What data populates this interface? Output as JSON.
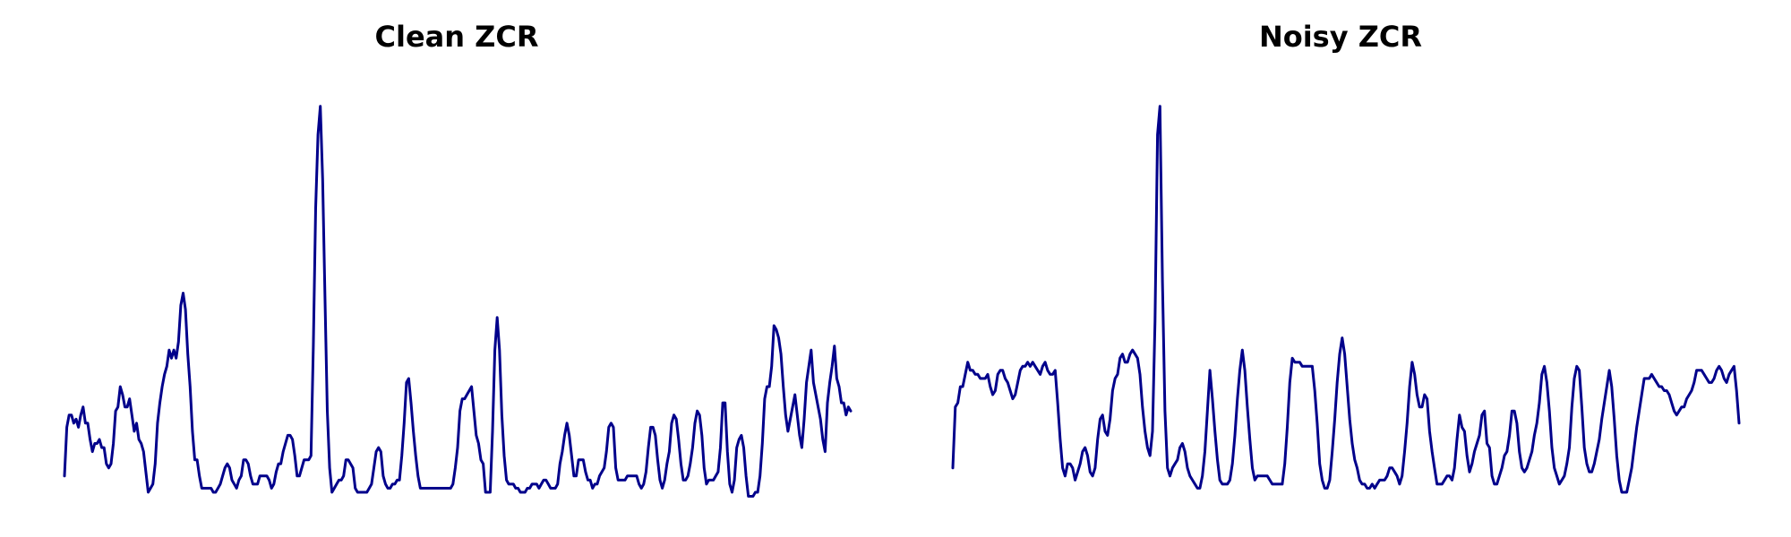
{
  "chart_data": [
    {
      "type": "line",
      "title": "Clean ZCR",
      "xlabel": "",
      "ylabel": "",
      "grid": false,
      "axes_visible": false,
      "ylim": [
        0,
        1
      ],
      "series": [
        {
          "color": "#00008b",
          "values": [
            0.04,
            0.16,
            0.19,
            0.19,
            0.17,
            0.18,
            0.16,
            0.19,
            0.21,
            0.17,
            0.17,
            0.13,
            0.1,
            0.12,
            0.12,
            0.13,
            0.11,
            0.11,
            0.07,
            0.06,
            0.07,
            0.12,
            0.2,
            0.21,
            0.26,
            0.24,
            0.21,
            0.21,
            0.23,
            0.19,
            0.15,
            0.17,
            0.13,
            0.12,
            0.1,
            0.05,
            -0.0,
            0.01,
            0.02,
            0.07,
            0.17,
            0.22,
            0.26,
            0.29,
            0.31,
            0.35,
            0.33,
            0.35,
            0.33,
            0.37,
            0.46,
            0.49,
            0.45,
            0.34,
            0.26,
            0.15,
            0.08,
            0.08,
            0.04,
            0.01,
            0.01,
            0.01,
            0.01,
            0.01,
            0.0,
            0.0,
            0.01,
            0.02,
            0.04,
            0.06,
            0.07,
            0.06,
            0.03,
            0.02,
            0.01,
            0.03,
            0.04,
            0.08,
            0.08,
            0.07,
            0.04,
            0.02,
            0.02,
            0.02,
            0.04,
            0.04,
            0.04,
            0.04,
            0.03,
            0.01,
            0.02,
            0.05,
            0.07,
            0.07,
            0.1,
            0.12,
            0.14,
            0.14,
            0.13,
            0.09,
            0.04,
            0.04,
            0.06,
            0.08,
            0.08,
            0.08,
            0.09,
            0.36,
            0.7,
            0.88,
            0.95,
            0.77,
            0.48,
            0.2,
            0.06,
            -0.0,
            0.01,
            0.02,
            0.03,
            0.03,
            0.04,
            0.08,
            0.08,
            0.07,
            0.06,
            0.01,
            -0.0,
            -0.0,
            -0.0,
            0.0,
            0.0,
            0.01,
            0.02,
            0.06,
            0.1,
            0.11,
            0.1,
            0.04,
            0.02,
            0.01,
            0.01,
            0.02,
            0.02,
            0.03,
            0.03,
            0.09,
            0.17,
            0.27,
            0.28,
            0.22,
            0.15,
            0.09,
            0.04,
            0.01,
            0.01,
            0.01,
            0.01,
            0.01,
            0.01,
            0.01,
            0.01,
            0.01,
            0.01,
            0.01,
            0.01,
            0.01,
            0.01,
            0.02,
            0.06,
            0.11,
            0.2,
            0.23,
            0.23,
            0.24,
            0.25,
            0.26,
            0.2,
            0.14,
            0.12,
            0.08,
            0.07,
            0.0,
            0.0,
            0.0,
            0.15,
            0.35,
            0.43,
            0.35,
            0.19,
            0.09,
            0.03,
            0.02,
            0.02,
            0.02,
            0.01,
            0.01,
            0.0,
            0.0,
            0.0,
            0.01,
            0.01,
            0.02,
            0.02,
            0.02,
            0.01,
            0.02,
            0.03,
            0.03,
            0.02,
            0.01,
            0.01,
            0.01,
            0.02,
            0.07,
            0.1,
            0.14,
            0.17,
            0.14,
            0.09,
            0.04,
            0.04,
            0.08,
            0.08,
            0.08,
            0.05,
            0.03,
            0.03,
            0.01,
            0.02,
            0.02,
            0.04,
            0.05,
            0.06,
            0.1,
            0.16,
            0.17,
            0.16,
            0.06,
            0.03,
            0.03,
            0.03,
            0.03,
            0.04,
            0.04,
            0.04,
            0.04,
            0.04,
            0.02,
            0.01,
            0.02,
            0.05,
            0.11,
            0.16,
            0.16,
            0.14,
            0.08,
            0.03,
            0.01,
            0.03,
            0.07,
            0.1,
            0.17,
            0.19,
            0.18,
            0.13,
            0.07,
            0.03,
            0.03,
            0.04,
            0.07,
            0.11,
            0.17,
            0.2,
            0.19,
            0.14,
            0.06,
            0.02,
            0.03,
            0.03,
            0.03,
            0.04,
            0.05,
            0.11,
            0.22,
            0.22,
            0.1,
            0.02,
            -0.0,
            0.03,
            0.11,
            0.13,
            0.14,
            0.11,
            0.04,
            -0.01,
            -0.01,
            -0.01,
            0.0,
            0.0,
            0.04,
            0.12,
            0.23,
            0.26,
            0.26,
            0.31,
            0.41,
            0.4,
            0.38,
            0.34,
            0.26,
            0.19,
            0.15,
            0.18,
            0.21,
            0.24,
            0.19,
            0.14,
            0.11,
            0.18,
            0.27,
            0.31,
            0.35,
            0.27,
            0.24,
            0.21,
            0.18,
            0.13,
            0.1,
            0.22,
            0.27,
            0.31,
            0.36,
            0.28,
            0.26,
            0.22,
            0.22,
            0.19,
            0.21,
            0.2
          ]
        }
      ]
    },
    {
      "type": "line",
      "title": "Noisy ZCR",
      "xlabel": "",
      "ylabel": "",
      "grid": false,
      "axes_visible": false,
      "ylim": [
        0,
        1
      ],
      "series": [
        {
          "color": "#00008b",
          "values": [
            0.06,
            0.21,
            0.22,
            0.26,
            0.26,
            0.29,
            0.32,
            0.3,
            0.3,
            0.29,
            0.29,
            0.28,
            0.28,
            0.28,
            0.29,
            0.26,
            0.24,
            0.25,
            0.29,
            0.3,
            0.3,
            0.28,
            0.27,
            0.25,
            0.23,
            0.24,
            0.27,
            0.3,
            0.31,
            0.31,
            0.32,
            0.31,
            0.32,
            0.31,
            0.3,
            0.29,
            0.31,
            0.32,
            0.3,
            0.29,
            0.29,
            0.3,
            0.22,
            0.13,
            0.06,
            0.04,
            0.07,
            0.07,
            0.06,
            0.03,
            0.05,
            0.07,
            0.1,
            0.11,
            0.09,
            0.05,
            0.04,
            0.06,
            0.13,
            0.18,
            0.19,
            0.15,
            0.14,
            0.18,
            0.25,
            0.28,
            0.29,
            0.33,
            0.34,
            0.32,
            0.32,
            0.34,
            0.35,
            0.34,
            0.33,
            0.29,
            0.21,
            0.15,
            0.11,
            0.09,
            0.15,
            0.42,
            0.88,
            0.95,
            0.52,
            0.2,
            0.06,
            0.04,
            0.06,
            0.07,
            0.08,
            0.11,
            0.12,
            0.1,
            0.06,
            0.04,
            0.03,
            0.02,
            0.01,
            0.01,
            0.04,
            0.1,
            0.2,
            0.3,
            0.23,
            0.15,
            0.08,
            0.03,
            0.02,
            0.02,
            0.02,
            0.03,
            0.07,
            0.14,
            0.23,
            0.3,
            0.35,
            0.3,
            0.21,
            0.13,
            0.06,
            0.03,
            0.04,
            0.04,
            0.04,
            0.04,
            0.04,
            0.03,
            0.02,
            0.02,
            0.02,
            0.02,
            0.02,
            0.07,
            0.16,
            0.27,
            0.33,
            0.32,
            0.32,
            0.32,
            0.31,
            0.31,
            0.31,
            0.31,
            0.31,
            0.25,
            0.17,
            0.07,
            0.03,
            0.01,
            0.01,
            0.03,
            0.1,
            0.18,
            0.27,
            0.34,
            0.38,
            0.34,
            0.26,
            0.18,
            0.12,
            0.08,
            0.06,
            0.03,
            0.02,
            0.02,
            0.01,
            0.01,
            0.02,
            0.01,
            0.02,
            0.03,
            0.03,
            0.03,
            0.04,
            0.06,
            0.06,
            0.05,
            0.04,
            0.02,
            0.04,
            0.1,
            0.17,
            0.26,
            0.32,
            0.29,
            0.24,
            0.21,
            0.21,
            0.24,
            0.23,
            0.15,
            0.1,
            0.06,
            0.02,
            0.02,
            0.02,
            0.03,
            0.04,
            0.04,
            0.03,
            0.06,
            0.13,
            0.19,
            0.16,
            0.15,
            0.09,
            0.05,
            0.07,
            0.1,
            0.12,
            0.14,
            0.19,
            0.2,
            0.12,
            0.11,
            0.04,
            0.02,
            0.02,
            0.04,
            0.06,
            0.09,
            0.1,
            0.14,
            0.2,
            0.2,
            0.17,
            0.1,
            0.06,
            0.05,
            0.06,
            0.08,
            0.1,
            0.14,
            0.17,
            0.22,
            0.29,
            0.31,
            0.27,
            0.2,
            0.11,
            0.06,
            0.04,
            0.02,
            0.03,
            0.04,
            0.07,
            0.11,
            0.21,
            0.28,
            0.31,
            0.3,
            0.21,
            0.11,
            0.07,
            0.05,
            0.05,
            0.07,
            0.1,
            0.13,
            0.18,
            0.22,
            0.26,
            0.3,
            0.26,
            0.18,
            0.09,
            0.03,
            0.0,
            -0.0,
            0.0,
            0.03,
            0.06,
            0.11,
            0.16,
            0.2,
            0.24,
            0.28,
            0.28,
            0.28,
            0.29,
            0.28,
            0.27,
            0.26,
            0.26,
            0.25,
            0.25,
            0.24,
            0.22,
            0.2,
            0.19,
            0.2,
            0.21,
            0.21,
            0.23,
            0.24,
            0.25,
            0.27,
            0.3,
            0.3,
            0.3,
            0.29,
            0.28,
            0.27,
            0.27,
            0.28,
            0.3,
            0.31,
            0.3,
            0.28,
            0.27,
            0.29,
            0.3,
            0.31,
            0.25,
            0.17
          ]
        }
      ]
    }
  ]
}
